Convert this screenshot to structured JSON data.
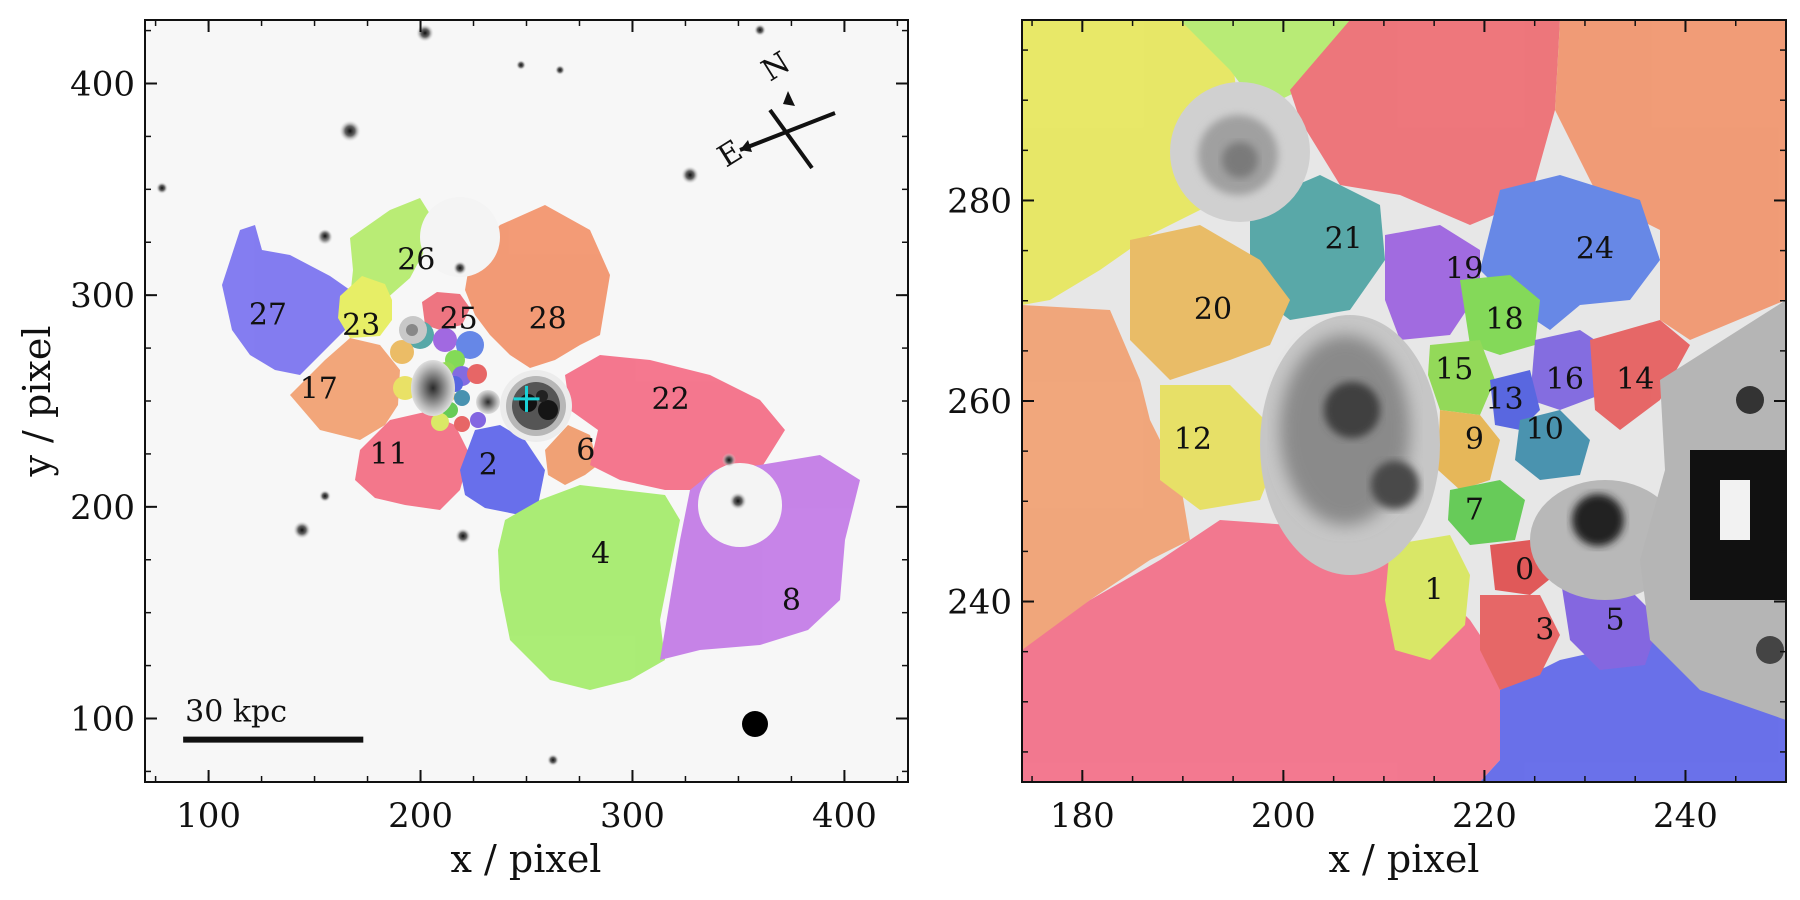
{
  "chart_data": [
    {
      "type": "scatter",
      "panel": "left",
      "xlabel": "x / pixel",
      "ylabel": "y / pixel",
      "xlim": [
        70,
        430
      ],
      "ylim": [
        70,
        430
      ],
      "xticks": [
        100,
        200,
        300,
        400
      ],
      "yticks": [
        100,
        200,
        300,
        400
      ],
      "compass": {
        "north": "N",
        "east": "E"
      },
      "scale_bar": {
        "label": "30 kpc",
        "x_start": 88,
        "x_end": 173,
        "y": 90
      },
      "center_marker": {
        "x": 250,
        "y": 251,
        "color": "#1ad1d6"
      },
      "regions": [
        {
          "label": "27",
          "x": 128,
          "y": 290,
          "color": "#7a72f0"
        },
        {
          "label": "26",
          "x": 198,
          "y": 316,
          "color": "#b4ec6a"
        },
        {
          "label": "23",
          "x": 172,
          "y": 285,
          "color": "#e6ee5a"
        },
        {
          "label": "25",
          "x": 218,
          "y": 288,
          "color": "#ee6a78"
        },
        {
          "label": "28",
          "x": 260,
          "y": 288,
          "color": "#f2936a"
        },
        {
          "label": "17",
          "x": 152,
          "y": 255,
          "color": "#f2a070"
        },
        {
          "label": "11",
          "x": 185,
          "y": 224,
          "color": "#f36d82"
        },
        {
          "label": "2",
          "x": 232,
          "y": 219,
          "color": "#5c64ea"
        },
        {
          "label": "6",
          "x": 278,
          "y": 226,
          "color": "#f09a6a"
        },
        {
          "label": "22",
          "x": 318,
          "y": 250,
          "color": "#f46d86"
        },
        {
          "label": "4",
          "x": 285,
          "y": 177,
          "color": "#a4ec6a"
        },
        {
          "label": "8",
          "x": 375,
          "y": 155,
          "color": "#c27ae6"
        }
      ]
    },
    {
      "type": "scatter",
      "panel": "right",
      "xlabel": "x / pixel",
      "ylabel": "",
      "xlim": [
        174,
        250
      ],
      "ylim": [
        222,
        298
      ],
      "xticks": [
        180,
        200,
        220,
        240
      ],
      "yticks": [
        240,
        260,
        280
      ],
      "regions": [
        {
          "label": "21",
          "x": 206,
          "y": 276,
          "color": "#4aa2a2"
        },
        {
          "label": "19",
          "x": 218,
          "y": 273,
          "color": "#9a5ee0"
        },
        {
          "label": "24",
          "x": 231,
          "y": 275,
          "color": "#5a7ee6"
        },
        {
          "label": "20",
          "x": 193,
          "y": 269,
          "color": "#eab85a"
        },
        {
          "label": "18",
          "x": 222,
          "y": 268,
          "color": "#7ad84a"
        },
        {
          "label": "15",
          "x": 217,
          "y": 263,
          "color": "#8ad84a"
        },
        {
          "label": "16",
          "x": 228,
          "y": 262,
          "color": "#7a60e0"
        },
        {
          "label": "14",
          "x": 235,
          "y": 262,
          "color": "#e65a5a"
        },
        {
          "label": "13",
          "x": 222,
          "y": 260,
          "color": "#4a5ae0"
        },
        {
          "label": "10",
          "x": 226,
          "y": 257,
          "color": "#3a8aaa"
        },
        {
          "label": "9",
          "x": 219,
          "y": 256,
          "color": "#e6b24a"
        },
        {
          "label": "12",
          "x": 191,
          "y": 256,
          "color": "#e8e05a"
        },
        {
          "label": "7",
          "x": 219,
          "y": 249,
          "color": "#5ac84a"
        },
        {
          "label": "0",
          "x": 224,
          "y": 243,
          "color": "#e04a4a"
        },
        {
          "label": "1",
          "x": 215,
          "y": 241,
          "color": "#d8e85a"
        },
        {
          "label": "3",
          "x": 226,
          "y": 237,
          "color": "#e65a5a"
        },
        {
          "label": "5",
          "x": 233,
          "y": 238,
          "color": "#7a5ae0"
        }
      ]
    }
  ]
}
